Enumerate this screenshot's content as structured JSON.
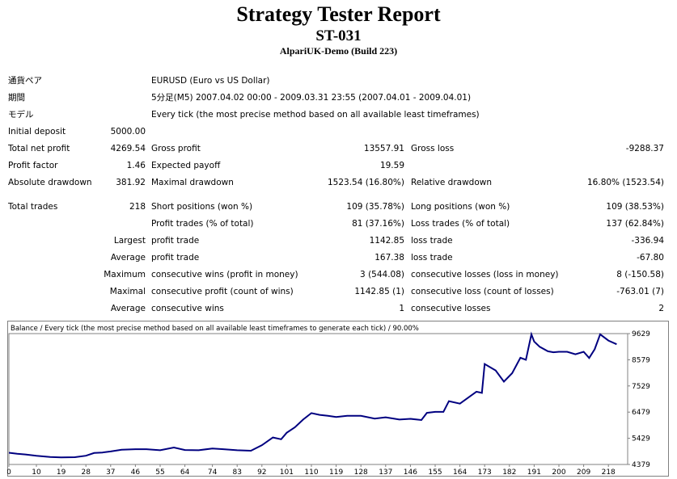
{
  "report": {
    "title": "Strategy Tester Report",
    "id": "ST-031",
    "server": "AlpariUK-Demo (Build 223)"
  },
  "info": {
    "pair_label": "通貨ペア",
    "pair_value": "EURUSD (Euro vs US Dollar)",
    "period_label": "期間",
    "period_value": "5分足(M5) 2007.04.02 00:00 - 2009.03.31 23:55 (2007.04.01 - 2009.04.01)",
    "model_label": "モデル",
    "model_value": "Every tick (the most precise method based on all available least timeframes)"
  },
  "stats": {
    "initial_deposit_label": "Initial deposit",
    "initial_deposit": "5000.00",
    "total_net_profit_label": "Total net profit",
    "total_net_profit": "4269.54",
    "gross_profit_label": "Gross profit",
    "gross_profit": "13557.91",
    "gross_loss_label": "Gross loss",
    "gross_loss": "-9288.37",
    "profit_factor_label": "Profit factor",
    "profit_factor": "1.46",
    "expected_payoff_label": "Expected payoff",
    "expected_payoff": "19.59",
    "absolute_drawdown_label": "Absolute drawdown",
    "absolute_drawdown": "381.92",
    "maximal_drawdown_label": "Maximal drawdown",
    "maximal_drawdown": "1523.54 (16.80%)",
    "relative_drawdown_label": "Relative drawdown",
    "relative_drawdown": "16.80% (1523.54)",
    "total_trades_label": "Total trades",
    "total_trades": "218",
    "short_positions_label": "Short positions (won %)",
    "short_positions": "109 (35.78%)",
    "long_positions_label": "Long positions (won %)",
    "long_positions": "109 (38.53%)",
    "profit_trades_label": "Profit trades (% of total)",
    "profit_trades": "81 (37.16%)",
    "loss_trades_label": "Loss trades (% of total)",
    "loss_trades": "137 (62.84%)",
    "largest_label": "Largest",
    "largest_profit_label": "profit trade",
    "largest_profit": "1142.85",
    "largest_loss_label": "loss trade",
    "largest_loss": "-336.94",
    "average_label": "Average",
    "average_profit_label": "profit trade",
    "average_profit": "167.38",
    "average_loss_label": "loss trade",
    "average_loss": "-67.80",
    "maximum_label": "Maximum",
    "max_cons_wins_label": "consecutive wins (profit in money)",
    "max_cons_wins": "3 (544.08)",
    "max_cons_losses_label": "consecutive losses (loss in money)",
    "max_cons_losses": "8 (-150.58)",
    "maximal_label": "Maximal",
    "maximal_cons_profit_label": "consecutive profit (count of wins)",
    "maximal_cons_profit": "1142.85 (1)",
    "maximal_cons_loss_label": "consecutive loss (count of losses)",
    "maximal_cons_loss": "-763.01 (7)",
    "average2_label": "Average",
    "avg_cons_wins_label": "consecutive wins",
    "avg_cons_wins": "1",
    "avg_cons_losses_label": "consecutive losses",
    "avg_cons_losses": "2"
  },
  "chart_data": {
    "type": "line",
    "title": "Balance / Every tick (the most precise method based on all available least timeframes to generate each tick) / 90.00%",
    "x_ticks": [
      0,
      10,
      19,
      28,
      37,
      46,
      55,
      64,
      74,
      83,
      92,
      101,
      110,
      119,
      128,
      137,
      146,
      155,
      164,
      173,
      182,
      191,
      200,
      209,
      218
    ],
    "y_ticks": [
      "9629",
      "8579",
      "7529",
      "6479",
      "5429",
      "4379"
    ],
    "xlim": [
      0,
      225
    ],
    "ylim": [
      4379,
      9629
    ],
    "grid": false,
    "line_color": "#000080",
    "series": [
      {
        "x": [
          0,
          3,
          6,
          10,
          15,
          19,
          24,
          28,
          31,
          34,
          37,
          41,
          46,
          50,
          55,
          60,
          64,
          69,
          74,
          78,
          83,
          88,
          92,
          96,
          99,
          101,
          104,
          107,
          110,
          113,
          116,
          119,
          123,
          128,
          133,
          137,
          142,
          146,
          150,
          152,
          155,
          158,
          160,
          164,
          167,
          170,
          172,
          173,
          177,
          180,
          183,
          186,
          188,
          190,
          191,
          193,
          196,
          198,
          200,
          203,
          206,
          209,
          211,
          213,
          215,
          218,
          221
        ],
        "y": [
          4850,
          4810,
          4780,
          4730,
          4680,
          4660,
          4670,
          4730,
          4840,
          4860,
          4900,
          4970,
          4990,
          4990,
          4950,
          5060,
          4960,
          4950,
          5020,
          4990,
          4950,
          4930,
          5150,
          5460,
          5390,
          5650,
          5870,
          6180,
          6440,
          6370,
          6330,
          6280,
          6330,
          6330,
          6220,
          6270,
          6180,
          6210,
          6160,
          6450,
          6490,
          6490,
          6920,
          6820,
          7060,
          7300,
          7250,
          8410,
          8150,
          7700,
          8040,
          8660,
          8580,
          9600,
          9310,
          9100,
          8920,
          8880,
          8900,
          8900,
          8800,
          8900,
          8650,
          9000,
          9600,
          9350,
          9200
        ]
      }
    ]
  }
}
